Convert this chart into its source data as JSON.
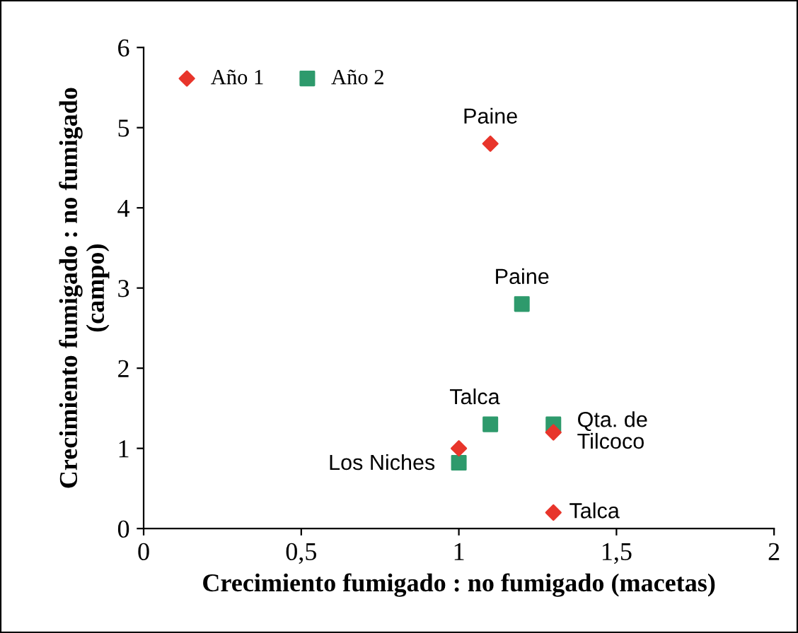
{
  "chart_data": {
    "type": "scatter",
    "xlabel": "Crecimiento fumigado : no fumigado (macetas)",
    "ylabel": "Crecimiento fumigado : no fumigado\n(campo)",
    "xlim": [
      0,
      2
    ],
    "xticks": [
      0,
      {
        "value": 0.5,
        "label": "0,5"
      },
      1,
      {
        "value": 1.5,
        "label": "1,5"
      },
      2
    ],
    "ylim": [
      0,
      6
    ],
    "yticks": [
      0,
      1,
      2,
      3,
      4,
      5,
      6
    ],
    "series": [
      {
        "name": "Año 1",
        "color": "#e8352b",
        "marker": "diamond",
        "x": [
          1.1,
          1.3,
          1.3,
          1.0
        ],
        "values": [
          4.8,
          1.2,
          0.2,
          1.0
        ]
      },
      {
        "name": "Año 2",
        "color": "#2e9a6c",
        "marker": "square",
        "x": [
          1.2,
          1.1,
          1.3,
          1.0
        ],
        "values": [
          2.8,
          1.3,
          1.3,
          0.82
        ]
      }
    ],
    "annotations": [
      {
        "text": "Paine",
        "x": 1.1,
        "y": 4.8
      },
      {
        "text": "Paine",
        "x": 1.2,
        "y": 2.8
      },
      {
        "text": "Talca",
        "x": 1.1,
        "y": 1.3
      },
      {
        "text": "Qta. de\nTilcoco",
        "x": 1.3,
        "y": 1.3
      },
      {
        "text": "Los Niches",
        "x": 1.0,
        "y": 0.9
      },
      {
        "text": "Talca",
        "x": 1.3,
        "y": 0.2
      }
    ],
    "legend": "top left",
    "grid": false
  }
}
